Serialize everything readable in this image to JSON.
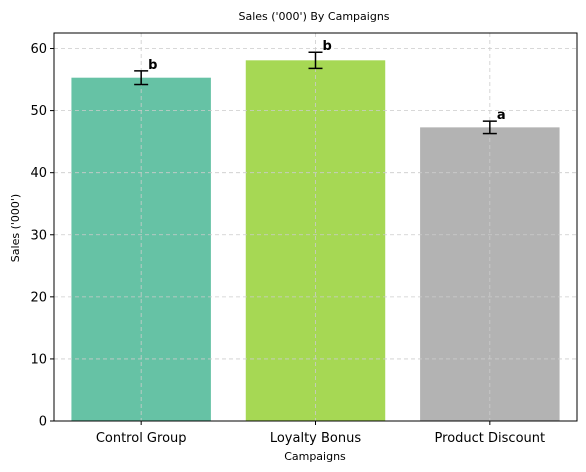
{
  "chart_data": {
    "type": "bar",
    "title": "Sales ('000') By Campaigns",
    "xlabel": "Campaigns",
    "ylabel": "Sales ('000')",
    "categories": [
      "Control Group",
      "Loyalty Bonus",
      "Product Discount"
    ],
    "values": [
      55.3,
      58.1,
      47.3
    ],
    "errors": [
      1.1,
      1.3,
      1.0
    ],
    "significance_labels": [
      "b",
      "b",
      "a"
    ],
    "colors": [
      "#66c2a5",
      "#a6d854",
      "#b3b3b3"
    ],
    "ylim": [
      0,
      62.5
    ],
    "yticks": [
      0,
      10,
      20,
      30,
      40,
      50,
      60
    ],
    "grid": true
  }
}
